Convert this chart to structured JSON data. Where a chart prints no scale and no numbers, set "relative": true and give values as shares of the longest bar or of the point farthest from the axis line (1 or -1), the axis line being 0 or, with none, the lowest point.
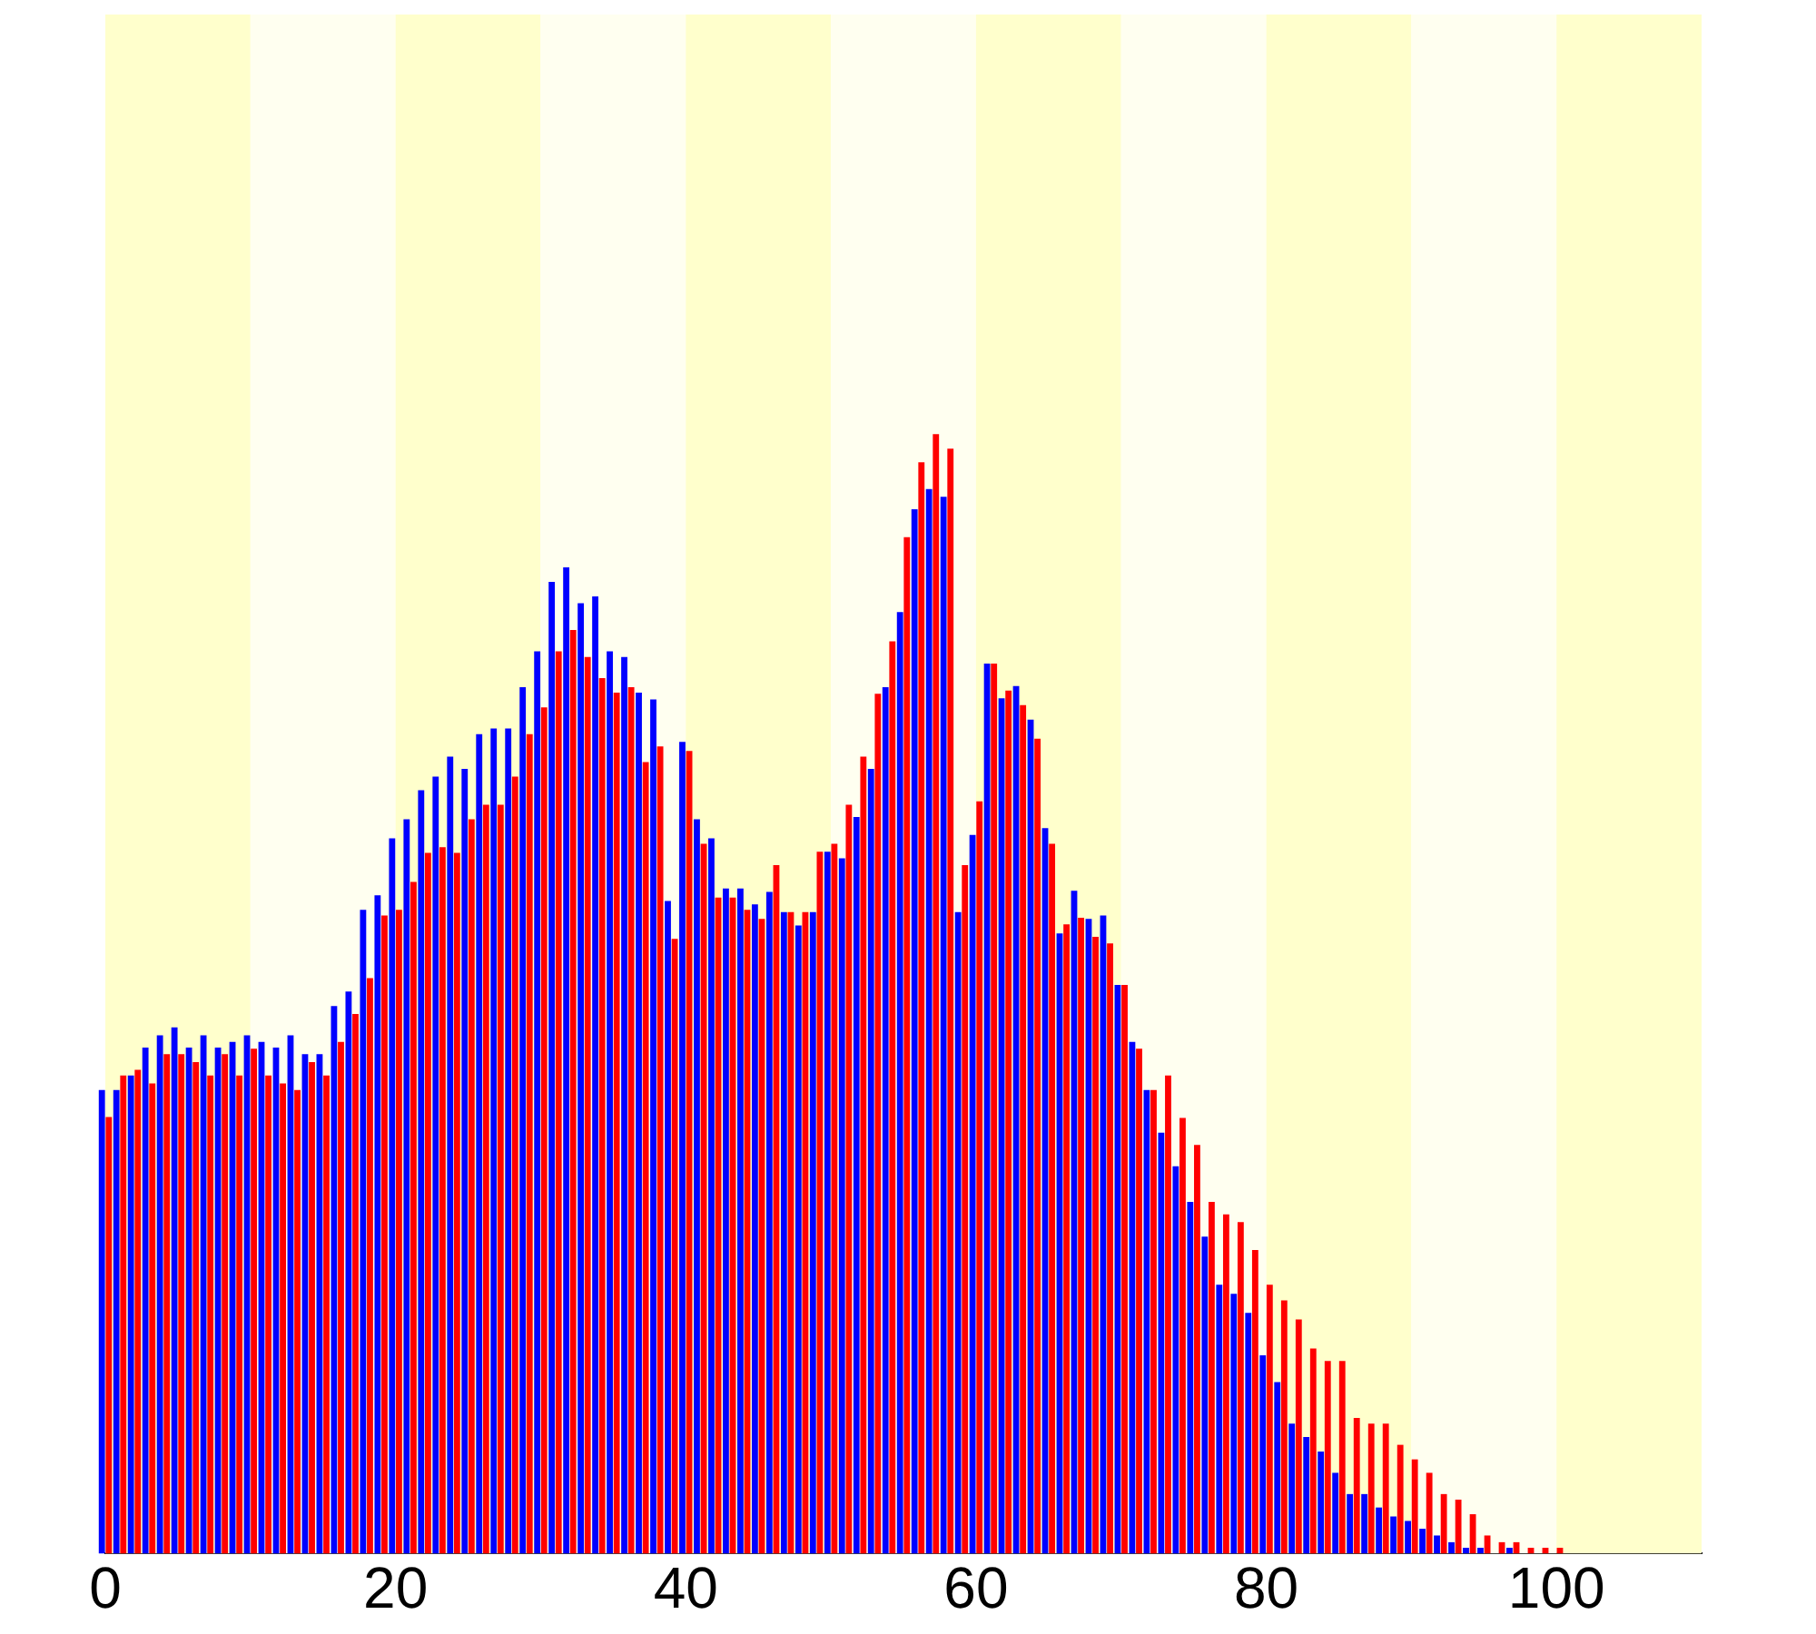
{
  "chart_data": {
    "type": "bar",
    "relative": true,
    "x": [
      0,
      1,
      2,
      3,
      4,
      5,
      6,
      7,
      8,
      9,
      10,
      11,
      12,
      13,
      14,
      15,
      16,
      17,
      18,
      19,
      20,
      21,
      22,
      23,
      24,
      25,
      26,
      27,
      28,
      29,
      30,
      31,
      32,
      33,
      34,
      35,
      36,
      37,
      38,
      39,
      40,
      41,
      42,
      43,
      44,
      45,
      46,
      47,
      48,
      49,
      50,
      51,
      52,
      53,
      54,
      55,
      56,
      57,
      58,
      59,
      60,
      61,
      62,
      63,
      64,
      65,
      66,
      67,
      68,
      69,
      70,
      71,
      72,
      73,
      74,
      75,
      76,
      77,
      78,
      79,
      80,
      81,
      82,
      83,
      84,
      85,
      86,
      87,
      88,
      89,
      90,
      91,
      92,
      93,
      94,
      95,
      96,
      97,
      98,
      99,
      100
    ],
    "series": [
      {
        "color": "#0000ff",
        "values": [
          0.414,
          0.414,
          0.427,
          0.452,
          0.463,
          0.47,
          0.452,
          0.463,
          0.452,
          0.457,
          0.463,
          0.457,
          0.452,
          0.463,
          0.446,
          0.446,
          0.489,
          0.502,
          0.575,
          0.588,
          0.639,
          0.656,
          0.682,
          0.694,
          0.712,
          0.701,
          0.732,
          0.737,
          0.737,
          0.774,
          0.806,
          0.868,
          0.881,
          0.849,
          0.855,
          0.806,
          0.801,
          0.769,
          0.763,
          0.583,
          0.725,
          0.656,
          0.639,
          0.594,
          0.594,
          0.58,
          0.591,
          0.573,
          0.561,
          0.573,
          0.627,
          0.621,
          0.658,
          0.701,
          0.774,
          0.841,
          0.933,
          0.951,
          0.944,
          0.573,
          0.642,
          0.795,
          0.764,
          0.775,
          0.745,
          0.648,
          0.554,
          0.592,
          0.567,
          0.57,
          0.508,
          0.457,
          0.414,
          0.376,
          0.346,
          0.314,
          0.283,
          0.24,
          0.232,
          0.215,
          0.177,
          0.153,
          0.116,
          0.104,
          0.091,
          0.072,
          0.053,
          0.053,
          0.041,
          0.033,
          0.029,
          0.022,
          0.016,
          0.01,
          0.005,
          0.005,
          0,
          0.005,
          0,
          0,
          0
        ]
      },
      {
        "color": "#ff0000",
        "values": [
          0.39,
          0.427,
          0.432,
          0.42,
          0.446,
          0.446,
          0.439,
          0.427,
          0.446,
          0.427,
          0.451,
          0.427,
          0.42,
          0.414,
          0.439,
          0.427,
          0.457,
          0.482,
          0.514,
          0.57,
          0.575,
          0.6,
          0.626,
          0.631,
          0.626,
          0.656,
          0.669,
          0.669,
          0.694,
          0.732,
          0.756,
          0.806,
          0.825,
          0.801,
          0.782,
          0.769,
          0.774,
          0.707,
          0.721,
          0.549,
          0.717,
          0.634,
          0.586,
          0.586,
          0.575,
          0.567,
          0.615,
          0.573,
          0.573,
          0.627,
          0.634,
          0.669,
          0.712,
          0.768,
          0.815,
          0.908,
          0.975,
          1,
          0.987,
          0.615,
          0.672,
          0.795,
          0.771,
          0.758,
          0.728,
          0.634,
          0.562,
          0.568,
          0.551,
          0.545,
          0.508,
          0.451,
          0.414,
          0.427,
          0.389,
          0.365,
          0.314,
          0.303,
          0.296,
          0.271,
          0.24,
          0.226,
          0.209,
          0.183,
          0.172,
          0.172,
          0.121,
          0.116,
          0.116,
          0.097,
          0.084,
          0.072,
          0.053,
          0.048,
          0.035,
          0.016,
          0.01,
          0.01,
          0.005,
          0.005,
          0.005
        ]
      }
    ],
    "xlim": [
      0,
      110
    ],
    "xticks": [
      0,
      20,
      40,
      60,
      80,
      100
    ],
    "bands": [
      {
        "axis": "x",
        "from": 0,
        "to": 10,
        "color": "#ffffcc"
      },
      {
        "axis": "x",
        "from": 10,
        "to": 20,
        "color": "#fffff0"
      },
      {
        "axis": "x",
        "from": 20,
        "to": 30,
        "color": "#ffffcc"
      },
      {
        "axis": "x",
        "from": 30,
        "to": 40,
        "color": "#fffff0"
      },
      {
        "axis": "x",
        "from": 40,
        "to": 50,
        "color": "#ffffcc"
      },
      {
        "axis": "x",
        "from": 50,
        "to": 60,
        "color": "#fffff0"
      },
      {
        "axis": "x",
        "from": 60,
        "to": 70,
        "color": "#ffffcc"
      },
      {
        "axis": "x",
        "from": 70,
        "to": 80,
        "color": "#fffff0"
      },
      {
        "axis": "x",
        "from": 80,
        "to": 90,
        "color": "#ffffcc"
      },
      {
        "axis": "x",
        "from": 90,
        "to": 100,
        "color": "#fffff0"
      },
      {
        "axis": "x",
        "from": 100,
        "to": 110,
        "color": "#ffffcc"
      }
    ],
    "grid": false,
    "legend": false,
    "tick_labels": "x"
  }
}
